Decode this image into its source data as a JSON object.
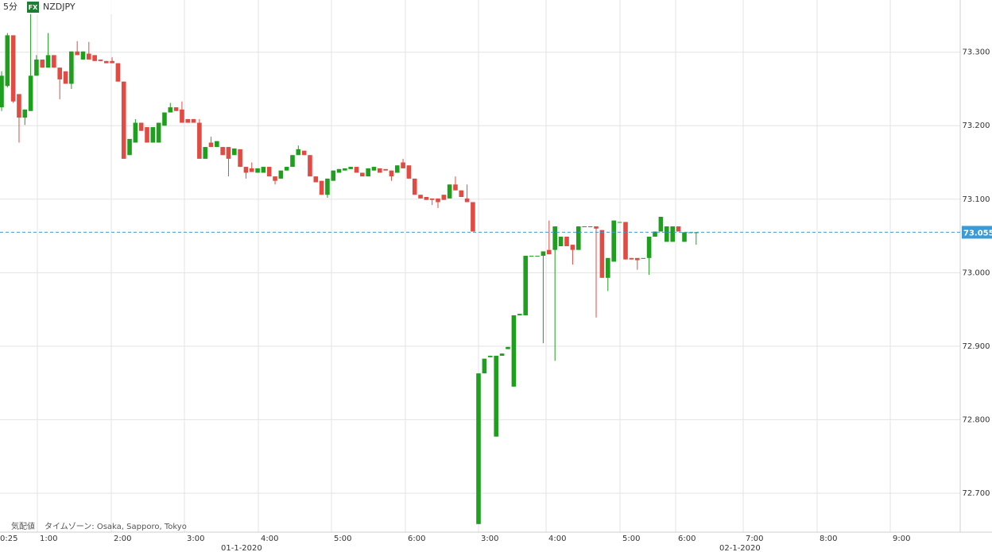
{
  "chart_data": {
    "type": "candlestick",
    "interval": "5分",
    "badge": "FX",
    "symbol": "NZDJPY",
    "footer_label": "気配値",
    "timezone": "タイムゾーン: Osaka, Sapporo, Tokyo",
    "up_color": "#1ea01e",
    "down_color": "#e04b43",
    "ylim": [
      72.647,
      73.371
    ],
    "yticks": [
      {
        "value": 72.7,
        "label": "72.700"
      },
      {
        "value": 72.8,
        "label": "72.800"
      },
      {
        "value": 72.9,
        "label": "72.900"
      },
      {
        "value": 73.0,
        "label": "73.000"
      },
      {
        "value": 73.1,
        "label": "73.100"
      },
      {
        "value": 73.2,
        "label": "73.200"
      },
      {
        "value": 73.3,
        "label": "73.300"
      }
    ],
    "xtick_labels": [
      "0:25",
      "1:00",
      "2:00",
      "3:00",
      "4:00",
      "5:00",
      "6:00",
      "3:00",
      "4:00",
      "5:00",
      "6:00",
      "7:00",
      "8:00",
      "9:00"
    ],
    "dates": [
      "01-1-2020",
      "02-1-2020"
    ],
    "current_price": 73.055,
    "current_color": "#3b9bd6",
    "candles": [
      [
        73.225,
        73.274,
        73.22,
        73.268
      ],
      [
        73.254,
        73.326,
        73.252,
        73.323
      ],
      [
        73.323,
        73.323,
        73.231,
        73.233
      ],
      [
        73.243,
        73.243,
        73.177,
        73.211
      ],
      [
        73.211,
        73.222,
        73.201,
        73.222
      ],
      [
        73.22,
        73.355,
        73.22,
        73.268
      ],
      [
        73.268,
        73.296,
        73.268,
        73.29
      ],
      [
        73.29,
        73.29,
        73.279,
        73.279
      ],
      [
        73.279,
        73.326,
        73.279,
        73.296
      ],
      [
        73.296,
        73.296,
        73.279,
        73.279
      ],
      [
        73.279,
        73.279,
        73.236,
        73.263
      ],
      [
        73.274,
        73.274,
        73.257,
        73.257
      ],
      [
        73.257,
        73.301,
        73.25,
        73.301
      ],
      [
        73.301,
        73.315,
        73.296,
        73.296
      ],
      [
        73.29,
        73.301,
        73.29,
        73.301
      ],
      [
        73.298,
        73.314,
        73.29,
        73.29
      ],
      [
        73.296,
        73.296,
        73.288,
        73.288
      ],
      [
        73.29,
        73.29,
        73.288,
        73.288
      ],
      [
        73.288,
        73.288,
        73.285,
        73.285
      ],
      [
        73.288,
        73.293,
        73.285,
        73.285
      ],
      [
        73.285,
        73.285,
        73.26,
        73.26
      ],
      [
        73.26,
        73.26,
        73.155,
        73.155
      ],
      [
        73.16,
        73.182,
        73.16,
        73.182
      ],
      [
        73.177,
        73.209,
        73.177,
        73.204
      ],
      [
        73.204,
        73.204,
        73.193,
        73.193
      ],
      [
        73.198,
        73.198,
        73.177,
        73.177
      ],
      [
        73.177,
        73.198,
        73.177,
        73.198
      ],
      [
        73.177,
        73.204,
        73.177,
        73.204
      ],
      [
        73.2,
        73.218,
        73.2,
        73.218
      ],
      [
        73.218,
        73.231,
        73.218,
        73.225
      ],
      [
        73.225,
        73.225,
        73.22,
        73.22
      ],
      [
        73.222,
        73.233,
        73.204,
        73.204
      ],
      [
        73.209,
        73.209,
        73.204,
        73.204
      ],
      [
        73.209,
        73.209,
        73.204,
        73.204
      ],
      [
        73.204,
        73.209,
        73.155,
        73.155
      ],
      [
        73.155,
        73.171,
        73.155,
        73.171
      ],
      [
        73.177,
        73.185,
        73.171,
        73.171
      ],
      [
        73.171,
        73.179,
        73.171,
        73.179
      ],
      [
        73.171,
        73.171,
        73.16,
        73.16
      ],
      [
        73.171,
        73.171,
        73.131,
        73.155
      ],
      [
        73.16,
        73.169,
        73.16,
        73.169
      ],
      [
        73.168,
        73.168,
        73.144,
        73.144
      ],
      [
        73.144,
        73.144,
        73.128,
        73.136
      ],
      [
        73.142,
        73.15,
        73.137,
        73.137
      ],
      [
        73.136,
        73.142,
        73.136,
        73.142
      ],
      [
        73.136,
        73.144,
        73.136,
        73.144
      ],
      [
        73.144,
        73.144,
        73.131,
        73.131
      ],
      [
        73.131,
        73.131,
        73.12,
        73.125
      ],
      [
        73.128,
        73.139,
        73.128,
        73.139
      ],
      [
        73.139,
        73.144,
        73.139,
        73.144
      ],
      [
        73.144,
        73.16,
        73.144,
        73.16
      ],
      [
        73.16,
        73.173,
        73.16,
        73.168
      ],
      [
        73.166,
        73.166,
        73.16,
        73.16
      ],
      [
        73.16,
        73.16,
        73.131,
        73.131
      ],
      [
        73.131,
        73.131,
        73.123,
        73.123
      ],
      [
        73.125,
        73.125,
        73.106,
        73.106
      ],
      [
        73.106,
        73.128,
        73.102,
        73.128
      ],
      [
        73.125,
        73.139,
        73.125,
        73.139
      ],
      [
        73.136,
        73.141,
        73.136,
        73.141
      ],
      [
        73.139,
        73.142,
        73.139,
        73.142
      ],
      [
        73.141,
        73.144,
        73.141,
        73.144
      ],
      [
        73.144,
        73.144,
        73.136,
        73.136
      ],
      [
        73.136,
        73.136,
        73.131,
        73.131
      ],
      [
        73.131,
        73.142,
        73.131,
        73.142
      ],
      [
        73.139,
        73.144,
        73.139,
        73.144
      ],
      [
        73.142,
        73.142,
        73.136,
        73.136
      ],
      [
        73.141,
        73.141,
        73.139,
        73.139
      ],
      [
        73.139,
        73.139,
        73.125,
        73.131
      ],
      [
        73.136,
        73.146,
        73.136,
        73.146
      ],
      [
        73.15,
        73.155,
        73.142,
        73.142
      ],
      [
        73.146,
        73.146,
        73.128,
        73.128
      ],
      [
        73.128,
        73.128,
        73.106,
        73.106
      ],
      [
        73.106,
        73.106,
        73.101,
        73.101
      ],
      [
        73.103,
        73.103,
        73.099,
        73.099
      ],
      [
        73.101,
        73.101,
        73.092,
        73.099
      ],
      [
        73.101,
        73.101,
        73.088,
        73.096
      ],
      [
        73.106,
        73.106,
        73.099,
        73.099
      ],
      [
        73.101,
        73.12,
        73.101,
        73.12
      ],
      [
        73.12,
        73.131,
        73.112,
        73.112
      ],
      [
        73.112,
        73.112,
        73.103,
        73.103
      ],
      [
        73.101,
        73.12,
        73.096,
        73.096
      ],
      [
        73.096,
        73.096,
        73.056,
        73.056
      ],
      [
        72.658,
        72.863,
        72.658,
        72.863
      ],
      [
        72.863,
        72.883,
        72.863,
        72.883
      ],
      [
        72.885,
        72.887,
        72.885,
        72.887
      ],
      [
        72.777,
        72.887,
        72.777,
        72.887
      ],
      [
        72.887,
        72.89,
        72.887,
        72.89
      ],
      [
        72.896,
        72.899,
        72.896,
        72.899
      ],
      [
        72.845,
        72.942,
        72.845,
        72.942
      ],
      [
        72.942,
        72.944,
        72.942,
        72.944
      ],
      [
        72.942,
        73.023,
        72.942,
        73.023
      ],
      [
        73.023,
        73.023,
        73.023,
        73.023
      ],
      [
        73.023,
        73.023,
        73.023,
        73.023
      ],
      [
        73.023,
        73.029,
        72.904,
        73.029
      ],
      [
        73.031,
        73.071,
        73.025,
        73.025
      ],
      [
        73.031,
        73.063,
        72.88,
        73.063
      ],
      [
        73.036,
        73.049,
        73.036,
        73.049
      ],
      [
        73.049,
        73.049,
        73.036,
        73.036
      ],
      [
        73.038,
        73.038,
        73.011,
        73.031
      ],
      [
        73.031,
        73.063,
        73.031,
        73.063
      ],
      [
        73.063,
        73.063,
        73.063,
        73.063
      ],
      [
        73.063,
        73.063,
        73.063,
        73.063
      ],
      [
        73.063,
        73.063,
        72.939,
        73.06
      ],
      [
        73.058,
        73.058,
        72.993,
        72.993
      ],
      [
        72.993,
        73.02,
        72.975,
        73.02
      ],
      [
        73.015,
        73.071,
        73.015,
        73.071
      ],
      [
        73.069,
        73.069,
        73.069,
        73.069
      ],
      [
        73.069,
        73.069,
        73.018,
        73.018
      ],
      [
        73.02,
        73.02,
        73.018,
        73.018
      ],
      [
        73.02,
        73.02,
        73.004,
        73.017
      ],
      [
        73.02,
        73.02,
        73.02,
        73.02
      ],
      [
        73.02,
        73.049,
        72.997,
        73.049
      ],
      [
        73.049,
        73.056,
        73.049,
        73.056
      ],
      [
        73.056,
        73.076,
        73.056,
        73.076
      ],
      [
        73.042,
        73.063,
        73.042,
        73.063
      ],
      [
        73.042,
        73.063,
        73.042,
        73.063
      ],
      [
        73.063,
        73.063,
        73.056,
        73.056
      ],
      [
        73.042,
        73.055,
        73.042,
        73.055
      ],
      [
        73.055,
        73.055,
        73.055,
        73.055
      ],
      [
        73.055,
        73.055,
        73.038,
        73.055
      ]
    ]
  }
}
